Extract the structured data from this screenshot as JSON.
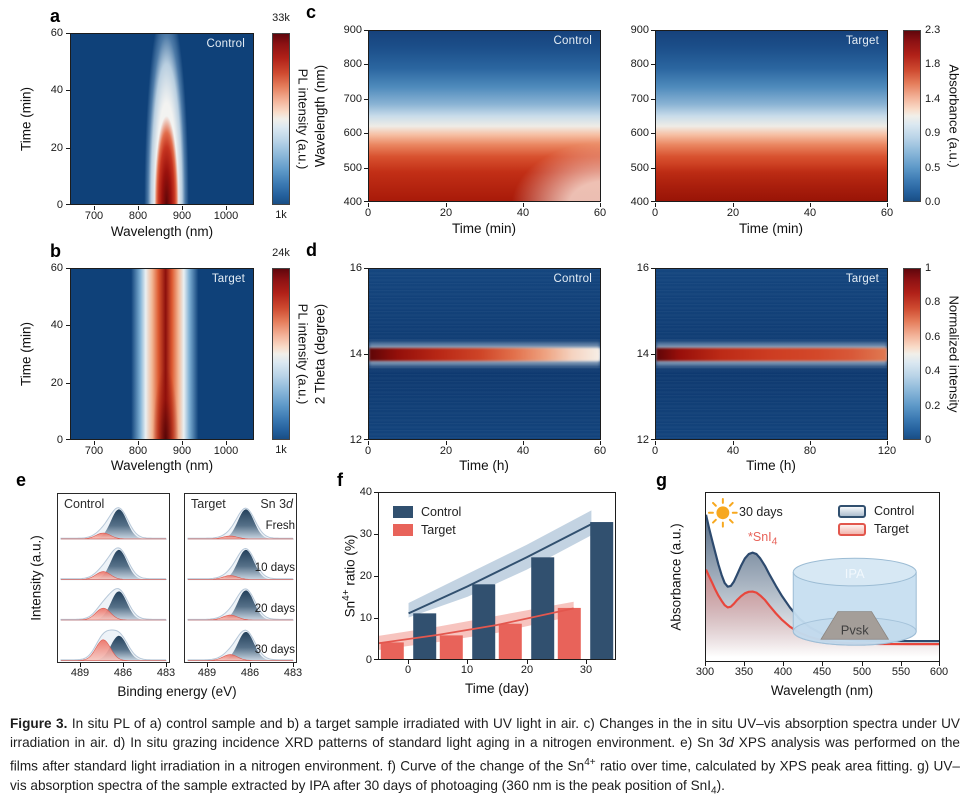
{
  "caption": {
    "label": "Figure 3.",
    "part1": " In situ PL of a) control sample and b) a target sample irradiated with UV light in air. c) Changes in the in situ UV–vis absorption spectra under UV irradiation in air. d) In situ grazing incidence XRD patterns of standard light aging in a nitrogen environment. e) Sn 3",
    "italic_d": "d",
    "part2": " XPS analysis was performed on the films after standard light irradiation in a nitrogen environment. f) Curve of the change of the Sn",
    "sup4": "4+",
    "part3": " ratio over time, calculated by XPS peak area fitting. g) UV–vis absorption spectra of the sample extracted by IPA after 30 days of photoaging (360 nm is the peak position of SnI",
    "sub4": "4",
    "part4": ")."
  },
  "panels": {
    "a": {
      "label": "a",
      "sample": "Control",
      "xlabel": "Wavelength (nm)",
      "ylabel": "Time (min)",
      "x_ticks": [
        "700",
        "800",
        "900",
        "1000"
      ],
      "y_ticks": [
        "60",
        "40",
        "20",
        "0"
      ],
      "colorbar": {
        "label": "PL intensity (a.u.)",
        "max": "33k",
        "min": "1k"
      }
    },
    "b": {
      "label": "b",
      "sample": "Target",
      "xlabel": "Wavelength (nm)",
      "ylabel": "Time (min)",
      "x_ticks": [
        "700",
        "800",
        "900",
        "1000"
      ],
      "y_ticks": [
        "60",
        "40",
        "20",
        "0"
      ],
      "colorbar": {
        "label": "PL intensity (a.u.)",
        "max": "24k",
        "min": "1k"
      }
    },
    "c": {
      "label": "c",
      "samples": [
        "Control",
        "Target"
      ],
      "xlabel": "Time (min)",
      "ylabel": "Wavelength (nm)",
      "x_ticks": [
        "0",
        "20",
        "40",
        "60"
      ],
      "y_ticks": [
        "900",
        "800",
        "700",
        "600",
        "500",
        "400"
      ],
      "colorbar": {
        "label": "Absorbance (a.u.)",
        "ticks": [
          "2.3",
          "1.8",
          "1.4",
          "0.9",
          "0.5",
          "0.0"
        ]
      }
    },
    "d": {
      "label": "d",
      "samples": [
        "Control",
        "Target"
      ],
      "xlabel": "Time (h)",
      "ylabel": "2 Theta (degree)",
      "x_ticks_left": [
        "0",
        "20",
        "40",
        "60"
      ],
      "x_ticks_right": [
        "0",
        "40",
        "80",
        "120"
      ],
      "y_ticks": [
        "16",
        "14",
        "12"
      ],
      "colorbar": {
        "label": "Normalized intensity",
        "ticks": [
          "1",
          "0.8",
          "0.6",
          "0.4",
          "0.2",
          "0"
        ]
      },
      "band_position_2theta": 14
    },
    "e": {
      "label": "e",
      "titles": {
        "left": "Control",
        "right": "Target",
        "corner_pre": "Sn 3",
        "corner_italic": "d"
      },
      "xlabel": "Binding energy (eV)",
      "ylabel": "Intensity (a.u.)",
      "x_ticks": [
        "489",
        "486",
        "483"
      ],
      "rows": [
        {
          "label": "Fresh",
          "control": {
            "navy": 30,
            "red": 6
          },
          "target": {
            "navy": 30,
            "red": 3
          }
        },
        {
          "label": "10 days",
          "control": {
            "navy": 30,
            "red": 8
          },
          "target": {
            "navy": 30,
            "red": 4
          }
        },
        {
          "label": "20 days",
          "control": {
            "navy": 29,
            "red": 12
          },
          "target": {
            "navy": 30,
            "red": 5
          }
        },
        {
          "label": "30 days",
          "control": {
            "navy": 25,
            "red": 21
          },
          "target": {
            "navy": 29,
            "red": 6
          }
        }
      ]
    },
    "f": {
      "label": "f",
      "ylabel_pre": "Sn",
      "ylabel_sup": "4+",
      "ylabel_post": " ratio (%)",
      "xlabel": "Time (day)",
      "x_ticks": [
        "0",
        "10",
        "20",
        "30"
      ],
      "y_ticks": [
        "40",
        "30",
        "20",
        "10",
        "0"
      ],
      "legend": [
        {
          "label": "Control",
          "color": "#31506f"
        },
        {
          "label": "Target",
          "color": "#e8635a"
        }
      ],
      "chart_data": {
        "type": "bar",
        "categories_days": [
          0,
          10,
          20,
          30
        ],
        "series": [
          {
            "name": "Control",
            "values": [
              11,
              18,
              24.5,
              33
            ]
          },
          {
            "name": "Target",
            "values": [
              4,
              5.7,
              8.5,
              12.3
            ]
          }
        ],
        "trend_control": {
          "x": [
            0,
            10,
            20,
            31
          ],
          "line": [
            11,
            17.5,
            24.5,
            32.5
          ],
          "upper": [
            13.5,
            20.5,
            27.5,
            35.8
          ],
          "lower": [
            10,
            15,
            21.5,
            29.8
          ]
        },
        "trend_target": {
          "x": [
            -5,
            5,
            15,
            28
          ],
          "line": [
            3.8,
            5.8,
            8.2,
            12.2
          ],
          "upper": [
            5.6,
            7.8,
            10.4,
            13.8
          ],
          "lower": [
            2.2,
            4.1,
            6.3,
            10.4
          ]
        },
        "xlim": [
          -5,
          35
        ],
        "ylim": [
          0,
          40
        ]
      }
    },
    "g": {
      "label": "g",
      "ylabel": "Absorbance (a.u.)",
      "xlabel": "Wavelength (nm)",
      "x_ticks": [
        "300",
        "350",
        "400",
        "450",
        "500",
        "550",
        "600"
      ],
      "sun_label": "30 days",
      "annotation_pre": "*SnI",
      "annotation_sub": "4",
      "legend": [
        {
          "label": "Control",
          "color": "#31506f"
        },
        {
          "label": "Target",
          "color": "#e2574d"
        }
      ],
      "inset": {
        "solvent_label": "IPA",
        "film_label": "Pvsk"
      },
      "chart_data": {
        "type": "line",
        "xlim": [
          300,
          600
        ],
        "x": [
          300,
          304,
          308,
          312,
          316,
          320,
          324,
          328,
          332,
          336,
          340,
          345,
          350,
          355,
          360,
          365,
          370,
          376,
          382,
          390,
          398,
          408,
          420,
          434,
          450,
          470,
          495,
          525,
          560,
          600
        ],
        "series": [
          {
            "name": "Control",
            "color": "#2d4a6e",
            "y": [
              0.92,
              0.83,
              0.745,
              0.665,
              0.585,
              0.515,
              0.46,
              0.435,
              0.44,
              0.47,
              0.515,
              0.575,
              0.625,
              0.655,
              0.665,
              0.655,
              0.625,
              0.575,
              0.515,
              0.44,
              0.37,
              0.295,
              0.22,
              0.16,
              0.115,
              0.085,
              0.072,
              0.068,
              0.067,
              0.067
            ]
          },
          {
            "name": "Target",
            "color": "#e8463c",
            "y": [
              0.55,
              0.505,
              0.46,
              0.415,
              0.375,
              0.34,
              0.31,
              0.295,
              0.3,
              0.32,
              0.345,
              0.37,
              0.39,
              0.4,
              0.402,
              0.395,
              0.375,
              0.345,
              0.305,
              0.255,
              0.21,
              0.165,
              0.125,
              0.095,
              0.072,
              0.058,
              0.051,
              0.048,
              0.047,
              0.047
            ]
          }
        ]
      }
    }
  }
}
